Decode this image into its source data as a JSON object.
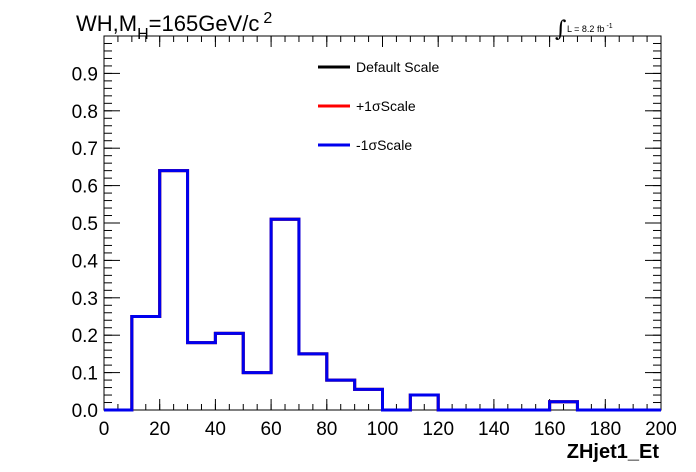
{
  "chart_data": {
    "type": "line",
    "title_main": "WH,M",
    "title_sub": "H",
    "title_rest": "=165GeV/c",
    "title_sup": "2",
    "lumi_label": "L = 8.2 fb",
    "lumi_sup": "-1",
    "xlabel": "ZHjet1_Et",
    "ylabel": "",
    "xlim": [
      0,
      200
    ],
    "ylim": [
      0,
      1.0
    ],
    "x_ticks": [
      "0",
      "20",
      "40",
      "60",
      "80",
      "100",
      "120",
      "140",
      "160",
      "180",
      "200"
    ],
    "y_ticks": [
      "0.0",
      "0.1",
      "0.2",
      "0.3",
      "0.4",
      "0.5",
      "0.6",
      "0.7",
      "0.8",
      "0.9"
    ],
    "bin_edges": [
      0,
      10,
      20,
      30,
      40,
      50,
      60,
      70,
      80,
      90,
      100,
      110,
      120,
      130,
      140,
      150,
      160,
      170,
      180,
      190,
      200
    ],
    "series": [
      {
        "name": "Default Scale",
        "color": "#000000",
        "values": [
          0,
          0.25,
          0.64,
          0.18,
          0.205,
          0.1,
          0.51,
          0.15,
          0.08,
          0.055,
          0,
          0.04,
          0,
          0,
          0,
          0,
          0.022,
          0,
          0,
          0
        ]
      },
      {
        "name": "+1σScale",
        "color": "#ff0000",
        "values": [
          0,
          0.25,
          0.64,
          0.18,
          0.205,
          0.1,
          0.51,
          0.15,
          0.08,
          0.055,
          0,
          0.04,
          0,
          0,
          0,
          0,
          0.022,
          0,
          0,
          0
        ]
      },
      {
        "name": "-1σScale",
        "color": "#0000ee",
        "values": [
          0,
          0.25,
          0.64,
          0.18,
          0.205,
          0.1,
          0.51,
          0.15,
          0.08,
          0.055,
          0,
          0.04,
          0,
          0,
          0,
          0,
          0.022,
          0,
          0,
          0
        ]
      }
    ],
    "grid": false,
    "legend_position": "top-center"
  }
}
